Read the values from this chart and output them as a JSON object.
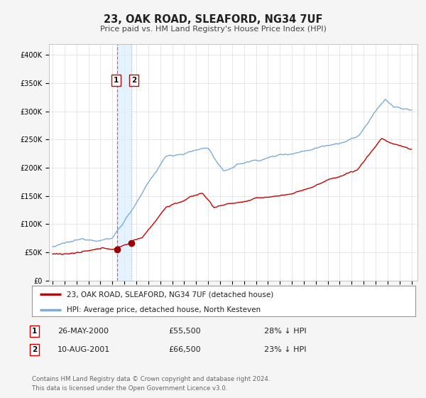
{
  "title": "23, OAK ROAD, SLEAFORD, NG34 7UF",
  "subtitle": "Price paid vs. HM Land Registry's House Price Index (HPI)",
  "legend_label_red": "23, OAK ROAD, SLEAFORD, NG34 7UF (detached house)",
  "legend_label_blue": "HPI: Average price, detached house, North Kesteven",
  "annotation1_label": "1",
  "annotation1_date": "26-MAY-2000",
  "annotation1_price": "£55,500",
  "annotation1_hpi": "28% ↓ HPI",
  "annotation2_label": "2",
  "annotation2_date": "10-AUG-2001",
  "annotation2_price": "£66,500",
  "annotation2_hpi": "23% ↓ HPI",
  "footer": "Contains HM Land Registry data © Crown copyright and database right 2024.\nThis data is licensed under the Open Government Licence v3.0.",
  "sale1_year": 2000.4,
  "sale1_value": 55500,
  "sale2_year": 2001.6,
  "sale2_value": 66500,
  "red_color": "#cc0000",
  "blue_color": "#7aaddb",
  "marker_color": "#990000",
  "vline1_color": "#cc4444",
  "shade_color": "#ddeeff",
  "ylim": [
    0,
    420000
  ],
  "yticks": [
    0,
    50000,
    100000,
    150000,
    200000,
    250000,
    300000,
    350000,
    400000
  ],
  "xlim_start": 1994.7,
  "xlim_end": 2025.5,
  "background_color": "#f5f5f5",
  "plot_bg_color": "#ffffff",
  "grid_color": "#dddddd",
  "fig_width": 6.0,
  "fig_height": 5.6,
  "dpi": 100
}
